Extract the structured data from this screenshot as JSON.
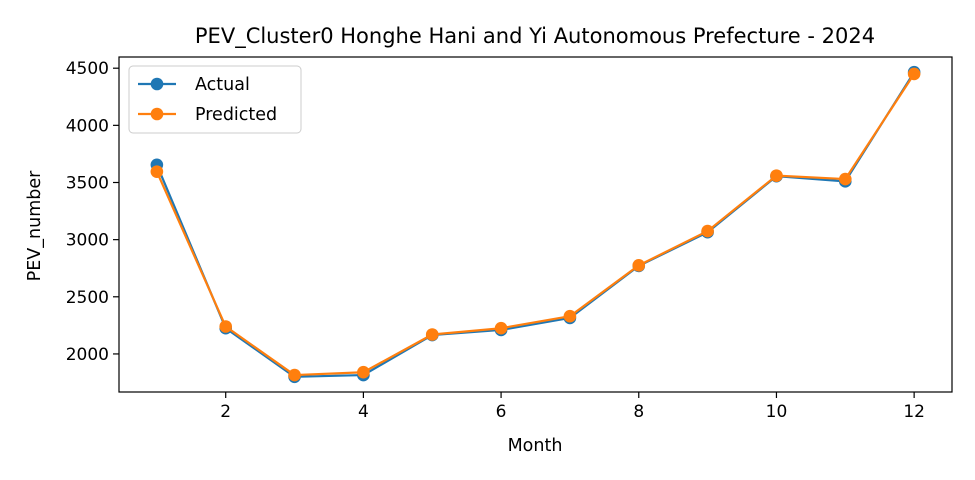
{
  "chart_data": {
    "type": "line",
    "title": "PEV_Cluster0 Honghe Hani and Yi Autonomous Prefecture - 2024",
    "xlabel": "Month",
    "ylabel": "PEV_number",
    "x": [
      1,
      2,
      3,
      4,
      5,
      6,
      7,
      8,
      9,
      10,
      11,
      12
    ],
    "series": [
      {
        "name": "Actual",
        "color": "#1f77b4",
        "marker": "circle",
        "values": [
          3655,
          2225,
          1800,
          1815,
          2165,
          2210,
          2315,
          2770,
          3065,
          3555,
          3510,
          4465
        ]
      },
      {
        "name": "Predicted",
        "color": "#ff7f0e",
        "marker": "circle",
        "values": [
          3595,
          2240,
          1815,
          1840,
          2170,
          2225,
          2330,
          2775,
          3075,
          3560,
          3530,
          4450
        ]
      }
    ],
    "xlim": [
      0.45,
      12.55
    ],
    "ylim": [
      1667,
      4598
    ],
    "xticks": [
      2,
      4,
      6,
      8,
      10,
      12
    ],
    "yticks": [
      2000,
      2500,
      3000,
      3500,
      4000,
      4500
    ],
    "grid": false,
    "legend_position": "upper-left"
  }
}
